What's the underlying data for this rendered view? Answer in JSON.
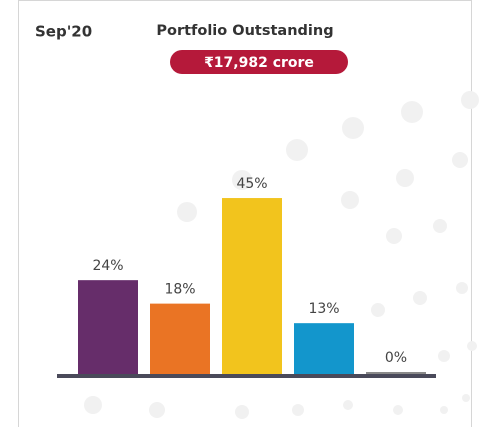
{
  "chart_data": {
    "type": "bar",
    "period": "Sep'20",
    "title": "Portfolio Outstanding",
    "subtitle": "₹17,982 crore",
    "categories": [
      null,
      null,
      null,
      null,
      null
    ],
    "values": [
      24,
      18,
      45,
      13,
      0
    ],
    "value_labels": [
      "24%",
      "18%",
      "45%",
      "13%",
      "0%"
    ],
    "colors": [
      "#662d6a",
      "#ea7424",
      "#f2c41d",
      "#1396cc",
      "#8a8a8a"
    ]
  }
}
